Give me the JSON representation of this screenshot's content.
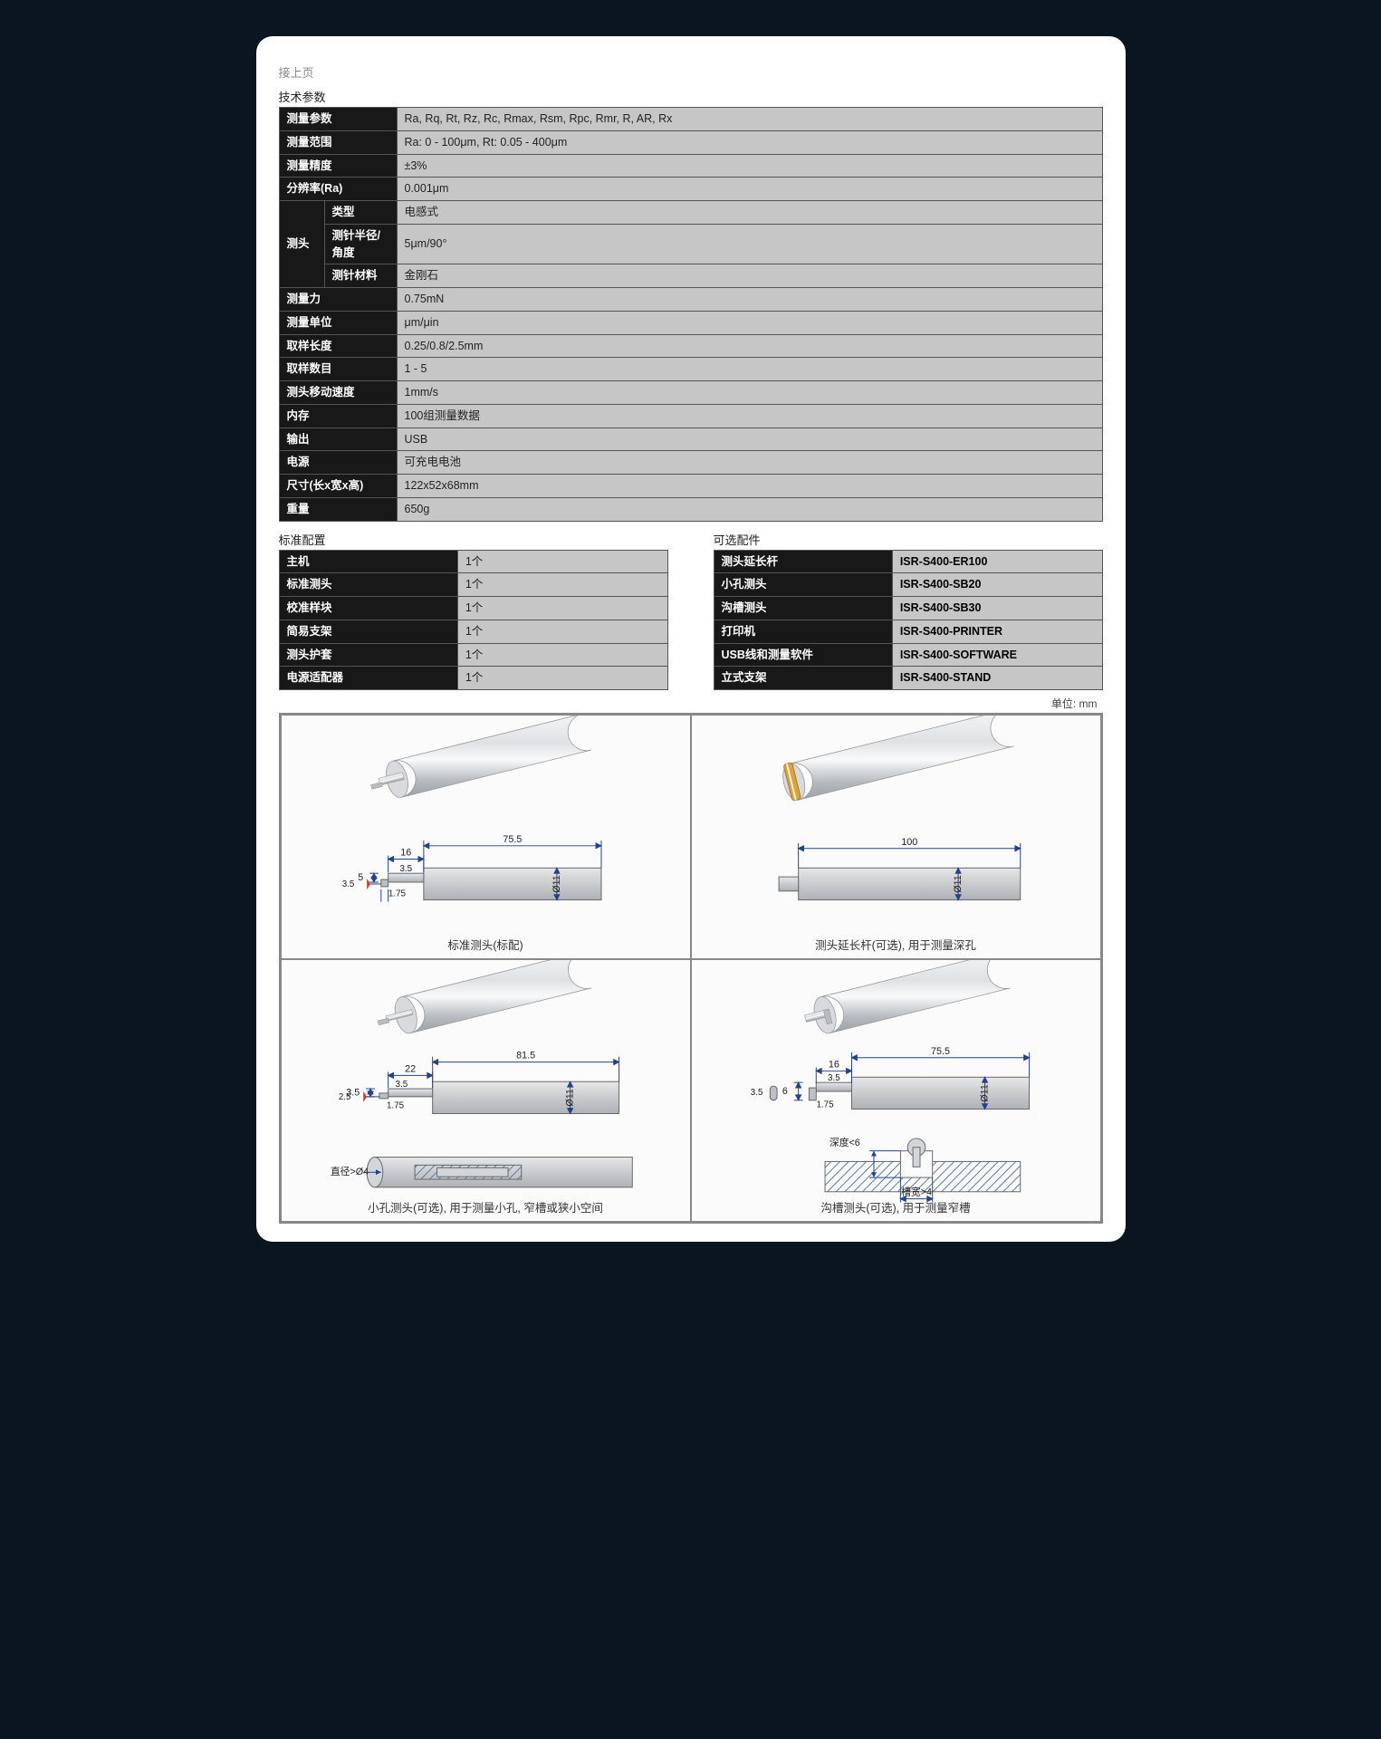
{
  "continued_label": "接上页",
  "spec_section_title": "技术参数",
  "spec_table": {
    "rows": [
      {
        "label": "测量参数",
        "value": "Ra, Rq, Rt, Rz, Rc, Rmax, Rsm, Rpc, Rmr, R, AR, Rx"
      },
      {
        "label": "测量范围",
        "value": "Ra: 0 - 100μm, Rt: 0.05 - 400μm"
      },
      {
        "label": "测量精度",
        "value": "±3%"
      },
      {
        "label": "分辨率(Ra)",
        "value": "0.001μm"
      }
    ],
    "probe_label": "测头",
    "probe_rows": [
      {
        "sublabel": "类型",
        "value": "电感式"
      },
      {
        "sublabel": "测针半径/角度",
        "value": "5μm/90°"
      },
      {
        "sublabel": "测针材料",
        "value": "金刚石"
      }
    ],
    "rows2": [
      {
        "label": "测量力",
        "value": "0.75mN"
      },
      {
        "label": "测量单位",
        "value": "μm/μin"
      },
      {
        "label": "取样长度",
        "value": "0.25/0.8/2.5mm"
      },
      {
        "label": "取样数目",
        "value": "1 - 5"
      },
      {
        "label": "测头移动速度",
        "value": "1mm/s"
      },
      {
        "label": "内存",
        "value": "100组测量数据"
      },
      {
        "label": "输出",
        "value": "USB"
      },
      {
        "label": "电源",
        "value": "可充电电池"
      },
      {
        "label": "尺寸(长x宽x高)",
        "value": "122x52x68mm"
      },
      {
        "label": "重量",
        "value": "650g"
      }
    ]
  },
  "std_config_title": "标准配置",
  "std_config_rows": [
    {
      "label": "主机",
      "value": "1个"
    },
    {
      "label": "标准测头",
      "value": "1个"
    },
    {
      "label": "校准样块",
      "value": "1个"
    },
    {
      "label": "简易支架",
      "value": "1个"
    },
    {
      "label": "测头护套",
      "value": "1个"
    },
    {
      "label": "电源适配器",
      "value": "1个"
    }
  ],
  "optional_title": "可选配件",
  "optional_rows": [
    {
      "label": "测头延长杆",
      "value": "ISR-S400-ER100"
    },
    {
      "label": "小孔测头",
      "value": "ISR-S400-SB20"
    },
    {
      "label": "沟槽测头",
      "value": "ISR-S400-SB30"
    },
    {
      "label": "打印机",
      "value": "ISR-S400-PRINTER"
    },
    {
      "label": "USB线和测量软件",
      "value": "ISR-S400-SOFTWARE"
    },
    {
      "label": "立式支架",
      "value": "ISR-S400-STAND"
    }
  ],
  "unit_label": "单位: mm",
  "diagrams": {
    "cell1": {
      "caption": "标准测头(标配)",
      "dims": {
        "len": "75.5",
        "step": "16",
        "stepH": "3.5",
        "stubH": "5",
        "stubGap": "1.75",
        "tipH": "3.5",
        "dia": "Ø11"
      }
    },
    "cell2": {
      "caption": "测头延长杆(可选), 用于测量深孔",
      "dims": {
        "len": "100",
        "dia": "Ø11"
      }
    },
    "cell3": {
      "caption": "小孔测头(可选), 用于测量小孔, 窄槽或狭小空间",
      "dims": {
        "len": "81.5",
        "step": "22",
        "stepH": "3.5",
        "stubH": "3.5",
        "stubGap": "1.75",
        "tipH": "2.5",
        "note": "直径>Ø4"
      }
    },
    "cell4": {
      "caption": "沟槽测头(可选), 用于测量窄槽",
      "dims": {
        "len": "75.5",
        "step": "16",
        "stepH": "3.5",
        "stubH": "6",
        "stubGap": "1.75",
        "tipH": "3.5",
        "dia": "Ø11",
        "depth": "深度<6",
        "slot": "槽宽>4"
      }
    }
  },
  "colors": {
    "page_bg": "#ffffff",
    "body_bg": "#0a1520",
    "table_header_bg": "#181818",
    "table_header_fg": "#ffffff",
    "table_cell_bg": "#c6c6c6",
    "border": "#555555",
    "diagram_border": "#888888",
    "metal_light": "#e8e8ea",
    "metal_mid": "#a8acb0",
    "metal_dark": "#808488",
    "dim_line": "#23418f",
    "hatch": "#5a7aa8"
  }
}
